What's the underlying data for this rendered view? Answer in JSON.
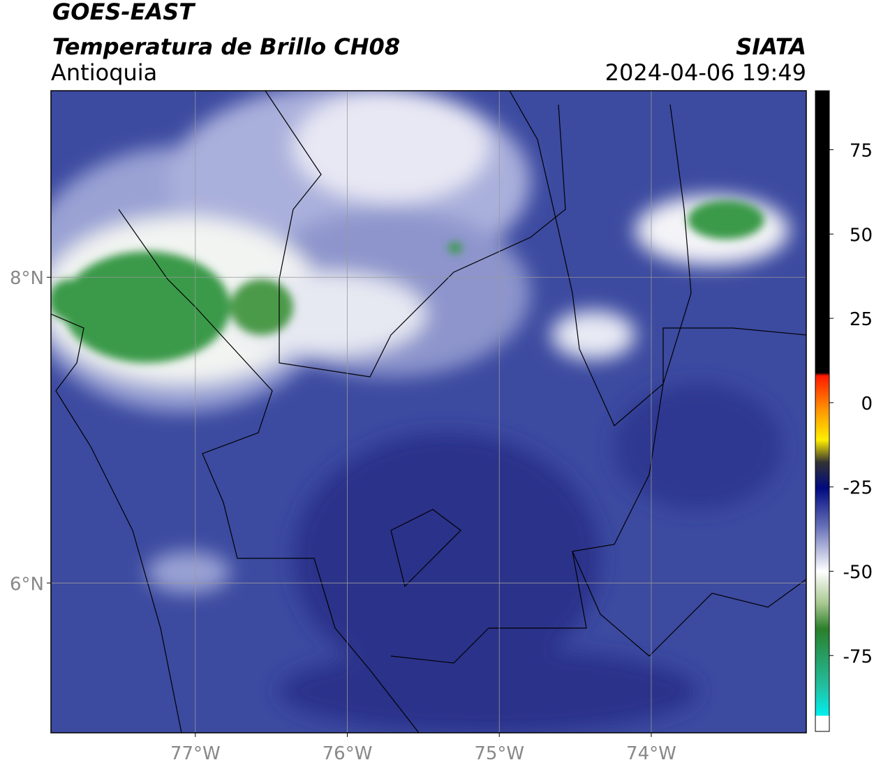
{
  "header": {
    "title": "GOES-EAST",
    "subtitle": "Temperatura de Brillo CH08",
    "region": "Antioquia",
    "source": "SIATA",
    "datetime": "2024-04-06 19:49"
  },
  "map": {
    "xlim": [
      -77.95,
      -72.98
    ],
    "ylim": [
      5.02,
      9.22
    ],
    "xticks": [
      {
        "value": -77,
        "label": "77°W"
      },
      {
        "value": -76,
        "label": "76°W"
      },
      {
        "value": -75,
        "label": "75°W"
      },
      {
        "value": -74,
        "label": "74°W"
      }
    ],
    "yticks": [
      {
        "value": 8,
        "label": "8°N"
      },
      {
        "value": 6,
        "label": "6°N"
      }
    ],
    "grid": true
  },
  "colorbar": {
    "lim": [
      -97.5,
      92.5
    ],
    "ticks": [
      75,
      50,
      25,
      0,
      -25,
      -50,
      -75
    ]
  }
}
